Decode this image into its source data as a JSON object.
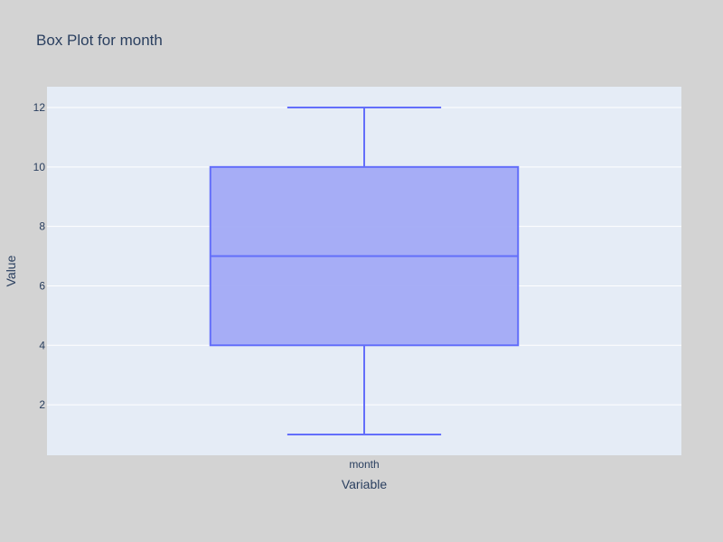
{
  "chart_data": {
    "type": "box",
    "title": "Box Plot for month",
    "xlabel": "Variable",
    "ylabel": "Value",
    "categories": [
      "month"
    ],
    "series": [
      {
        "category": "month",
        "min": 1,
        "q1": 4,
        "median": 7,
        "q3": 10,
        "max": 12
      }
    ],
    "ylim": [
      0.3,
      12.7
    ],
    "yticks": [
      2,
      4,
      6,
      8,
      10,
      12
    ],
    "grid": true,
    "colors": {
      "page_bg": "#d3d3d3",
      "plot_bg": "#e5ecf6",
      "box_fill": "#a2aaf6",
      "box_line": "#636efa",
      "text": "#2a3f5f"
    }
  }
}
